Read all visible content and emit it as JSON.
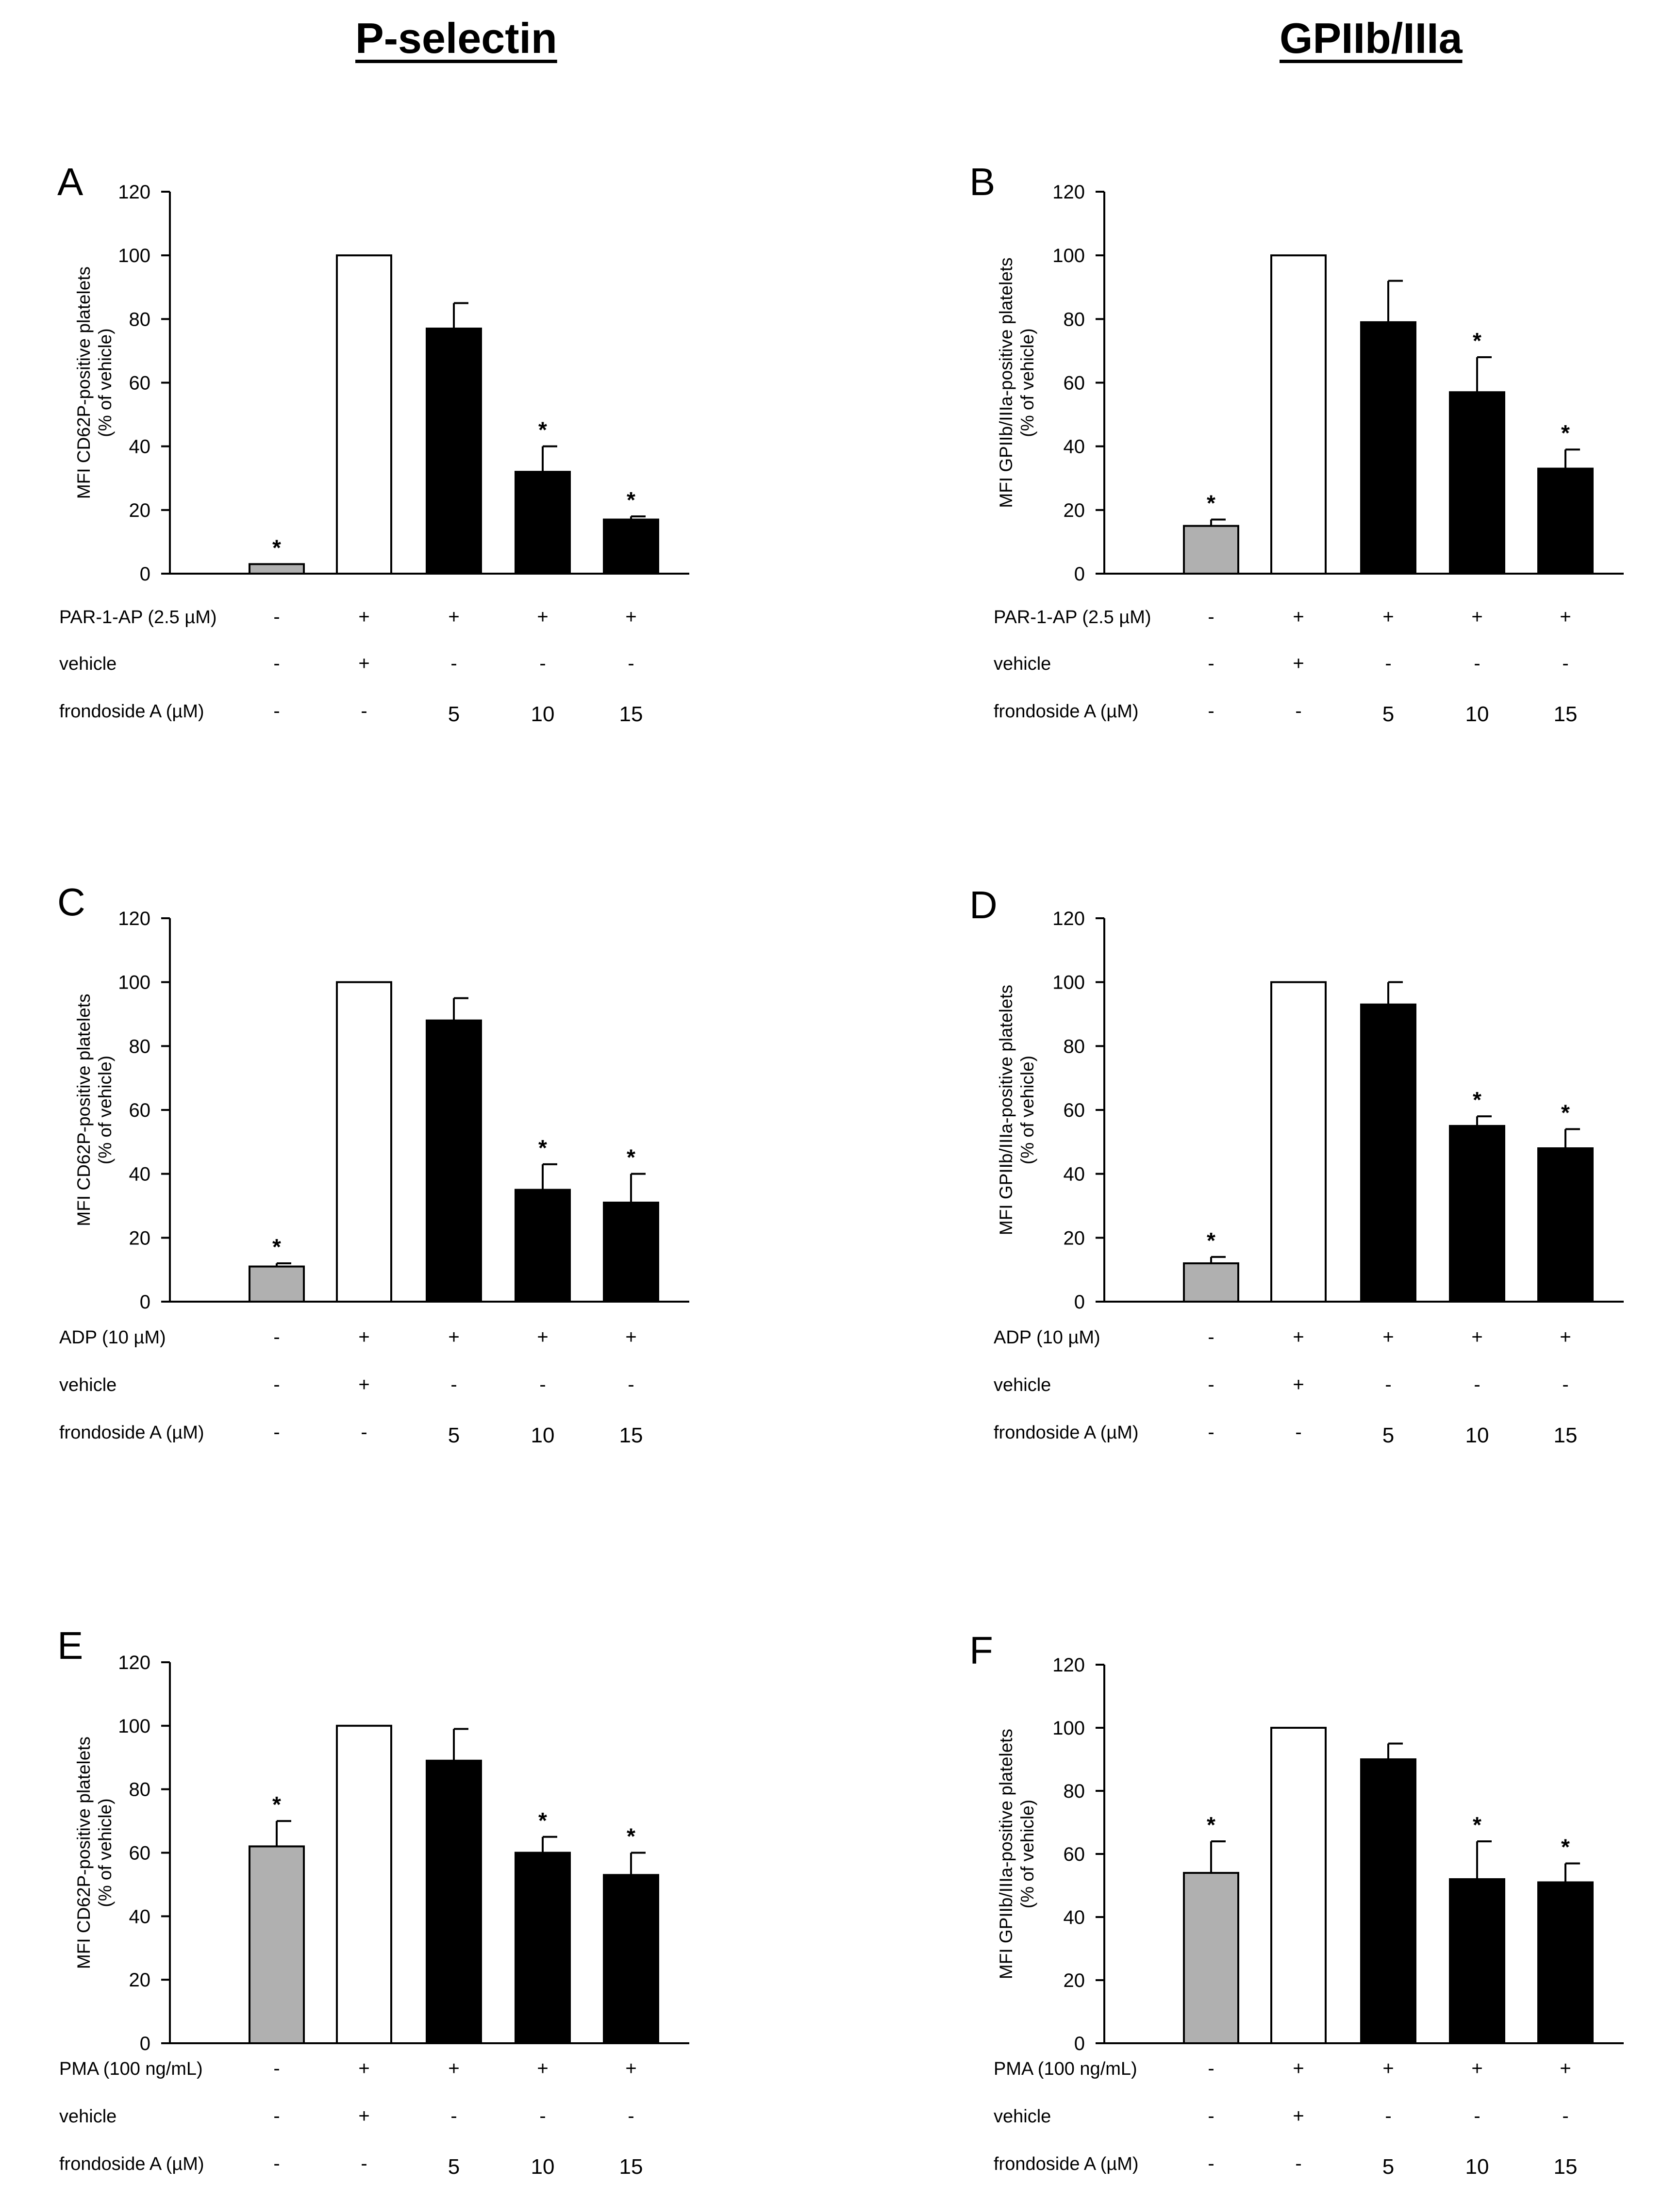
{
  "columns": {
    "left_title": "P-selectin",
    "right_title": "GPIIb/IIIa"
  },
  "colors": {
    "control_bar": "#b0b0b0",
    "vehicle_bar": "#ffffff",
    "treatment_bar": "#000000",
    "axis": "#000000"
  },
  "chart_data": [
    {
      "panel": "A",
      "type": "bar",
      "ylabel": [
        "MFI CD62P-positive platelets",
        "(% of vehicle)"
      ],
      "ylim": [
        0,
        120
      ],
      "yticks": [
        0,
        20,
        40,
        60,
        80,
        100,
        120
      ],
      "values": [
        3,
        100,
        77,
        32,
        17
      ],
      "errors": [
        0,
        0,
        8,
        8,
        1
      ],
      "significant": [
        "*",
        "",
        "",
        "*",
        "*"
      ],
      "fills": [
        "control",
        "vehicle",
        "treatment",
        "treatment",
        "treatment"
      ],
      "rows": [
        {
          "label": "PAR-1-AP (2.5 µM)",
          "values": [
            "-",
            "+",
            "+",
            "+",
            "+"
          ]
        },
        {
          "label": "vehicle",
          "values": [
            "-",
            "+",
            "-",
            "-",
            "-"
          ]
        },
        {
          "label": "frondoside A (µM)",
          "values": [
            "-",
            "-",
            "5",
            "10",
            "15"
          ]
        }
      ]
    },
    {
      "panel": "B",
      "type": "bar",
      "ylabel": [
        "MFI GPIIb/IIIa-positive platelets",
        "(% of vehicle)"
      ],
      "ylim": [
        0,
        120
      ],
      "yticks": [
        0,
        20,
        40,
        60,
        80,
        100,
        120
      ],
      "values": [
        15,
        100,
        79,
        57,
        33
      ],
      "errors": [
        2,
        0,
        13,
        11,
        6
      ],
      "significant": [
        "*",
        "",
        "",
        "*",
        "*"
      ],
      "fills": [
        "control",
        "vehicle",
        "treatment",
        "treatment",
        "treatment"
      ],
      "rows": [
        {
          "label": "PAR-1-AP (2.5 µM)",
          "values": [
            "-",
            "+",
            "+",
            "+",
            "+"
          ]
        },
        {
          "label": "vehicle",
          "values": [
            "-",
            "+",
            "-",
            "-",
            "-"
          ]
        },
        {
          "label": "frondoside A (µM)",
          "values": [
            "-",
            "-",
            "5",
            "10",
            "15"
          ]
        }
      ]
    },
    {
      "panel": "C",
      "type": "bar",
      "ylabel": [
        "MFI CD62P-positive platelets",
        "(% of vehicle)"
      ],
      "ylim": [
        0,
        120
      ],
      "yticks": [
        0,
        20,
        40,
        60,
        80,
        100,
        120
      ],
      "values": [
        11,
        100,
        88,
        35,
        31
      ],
      "errors": [
        1,
        0,
        7,
        8,
        9
      ],
      "significant": [
        "*",
        "",
        "",
        "*",
        "*"
      ],
      "fills": [
        "control",
        "vehicle",
        "treatment",
        "treatment",
        "treatment"
      ],
      "rows": [
        {
          "label": "ADP (10 µM)",
          "values": [
            "-",
            "+",
            "+",
            "+",
            "+"
          ]
        },
        {
          "label": "vehicle",
          "values": [
            "-",
            "+",
            "-",
            "-",
            "-"
          ]
        },
        {
          "label": "frondoside A (µM)",
          "values": [
            "-",
            "-",
            "5",
            "10",
            "15"
          ]
        }
      ]
    },
    {
      "panel": "D",
      "type": "bar",
      "ylabel": [
        "MFI GPIIb/IIIa-positive platelets",
        "(% of vehicle)"
      ],
      "ylim": [
        0,
        120
      ],
      "yticks": [
        0,
        20,
        40,
        60,
        80,
        100,
        120
      ],
      "values": [
        12,
        100,
        93,
        55,
        48
      ],
      "errors": [
        2,
        0,
        7,
        3,
        6
      ],
      "significant": [
        "*",
        "",
        "",
        "*",
        "*"
      ],
      "fills": [
        "control",
        "vehicle",
        "treatment",
        "treatment",
        "treatment"
      ],
      "rows": [
        {
          "label": "ADP (10 µM)",
          "values": [
            "-",
            "+",
            "+",
            "+",
            "+"
          ]
        },
        {
          "label": "vehicle",
          "values": [
            "-",
            "+",
            "-",
            "-",
            "-"
          ]
        },
        {
          "label": "frondoside A (µM)",
          "values": [
            "-",
            "-",
            "5",
            "10",
            "15"
          ]
        }
      ]
    },
    {
      "panel": "E",
      "type": "bar",
      "ylabel": [
        "MFI CD62P-positive platelets",
        "(% of vehicle)"
      ],
      "ylim": [
        0,
        120
      ],
      "yticks": [
        0,
        20,
        40,
        60,
        80,
        100,
        120
      ],
      "values": [
        62,
        100,
        89,
        60,
        53
      ],
      "errors": [
        8,
        0,
        10,
        5,
        7
      ],
      "significant": [
        "*",
        "",
        "",
        "*",
        "*"
      ],
      "fills": [
        "control",
        "vehicle",
        "treatment",
        "treatment",
        "treatment"
      ],
      "rows": [
        {
          "label": "PMA (100 ng/mL)",
          "values": [
            "-",
            "+",
            "+",
            "+",
            "+"
          ]
        },
        {
          "label": "vehicle",
          "values": [
            "-",
            "+",
            "-",
            "-",
            "-"
          ]
        },
        {
          "label": "frondoside A (µM)",
          "values": [
            "-",
            "-",
            "5",
            "10",
            "15"
          ]
        }
      ]
    },
    {
      "panel": "F",
      "type": "bar",
      "ylabel": [
        "MFI GPIIb/IIIa-positive platelets",
        "(% of vehicle)"
      ],
      "ylim": [
        0,
        120
      ],
      "yticks": [
        0,
        20,
        40,
        60,
        80,
        100,
        120
      ],
      "values": [
        54,
        100,
        90,
        52,
        51
      ],
      "errors": [
        10,
        0,
        5,
        12,
        6
      ],
      "significant": [
        "*",
        "",
        "",
        "*",
        "*"
      ],
      "fills": [
        "control",
        "vehicle",
        "treatment",
        "treatment",
        "treatment"
      ],
      "rows": [
        {
          "label": "PMA (100 ng/mL)",
          "values": [
            "-",
            "+",
            "+",
            "+",
            "+"
          ]
        },
        {
          "label": "vehicle",
          "values": [
            "-",
            "+",
            "-",
            "-",
            "-"
          ]
        },
        {
          "label": "frondoside A (µM)",
          "values": [
            "-",
            "-",
            "5",
            "10",
            "15"
          ]
        }
      ]
    }
  ]
}
